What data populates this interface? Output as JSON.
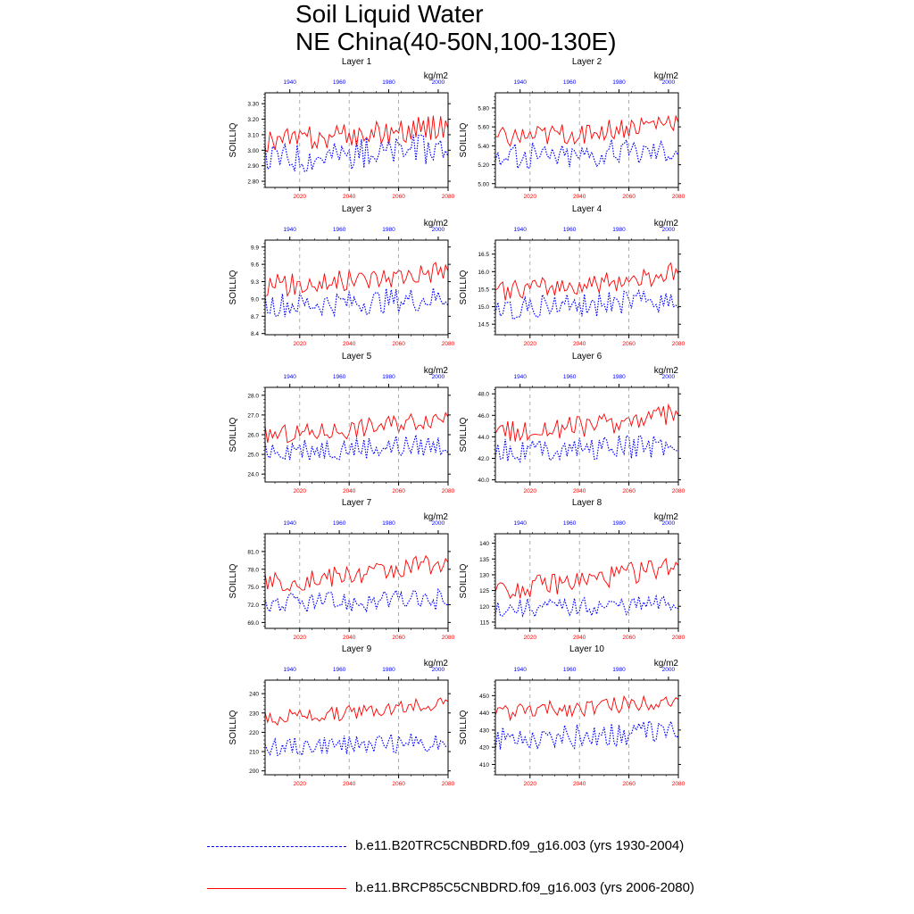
{
  "title": [
    "Soil Liquid Water",
    "NE China(40-50N,100-130E)"
  ],
  "legend": [
    {
      "label": "b.e11.B20TRC5CNBDRD.f09_g16.003 (yrs 1930-2004)",
      "color": "#0000ff",
      "style": "dashed"
    },
    {
      "label": "b.e11.BRCP85C5CNBDRD.f09_g16.003 (yrs 2006-2080)",
      "color": "#ff0000",
      "style": "solid"
    }
  ],
  "chart_data": [
    {
      "type": "line",
      "title": "Layer 1",
      "ylabel": "SOILLIQ",
      "units": "kg/m2",
      "ylim": [
        2.76,
        3.37
      ],
      "yticks": [
        "2.80",
        "2.90",
        "3.00",
        "3.10",
        "3.20",
        "3.30"
      ],
      "xlim_red": [
        2006,
        2080
      ],
      "xticks_red": [
        "2020",
        "2040",
        "2060",
        "2080"
      ],
      "xlim_blue": [
        1930,
        2004
      ],
      "xticks_blue": [
        "1940",
        "1960",
        "1980",
        "2000"
      ],
      "series": [
        {
          "period": "1930-2004",
          "color": "#0000ff",
          "start": 2.9,
          "end": 3.05,
          "mean": 3.0,
          "amp": 0.1
        },
        {
          "period": "2006-2080",
          "color": "#ff0000",
          "start": 3.0,
          "end": 3.2,
          "mean": 3.12,
          "amp": 0.08
        }
      ]
    },
    {
      "type": "line",
      "title": "Layer 2",
      "ylabel": "SOILLIQ",
      "units": "kg/m2",
      "ylim": [
        4.96,
        5.96
      ],
      "yticks": [
        "5.00",
        "5.20",
        "5.40",
        "5.60",
        "5.80"
      ],
      "xlim_red": [
        2006,
        2080
      ],
      "xticks_red": [
        "2020",
        "2040",
        "2060",
        "2080"
      ],
      "xlim_blue": [
        1930,
        2004
      ],
      "xticks_blue": [
        "1940",
        "1960",
        "1980",
        "2000"
      ],
      "series": [
        {
          "period": "1930-2004",
          "color": "#0000ff",
          "start": 5.25,
          "end": 5.45,
          "mean": 5.32,
          "amp": 0.14
        },
        {
          "period": "2006-2080",
          "color": "#ff0000",
          "start": 5.4,
          "end": 5.8,
          "mean": 5.55,
          "amp": 0.12
        }
      ]
    },
    {
      "type": "line",
      "title": "Layer 3",
      "ylabel": "SOILLIQ",
      "units": "kg/m2",
      "ylim": [
        8.38,
        10.02
      ],
      "yticks": [
        "8.4",
        "8.7",
        "9.0",
        "9.3",
        "9.6",
        "9.9"
      ],
      "xlim_red": [
        2006,
        2080
      ],
      "xticks_red": [
        "2020",
        "2040",
        "2060",
        "2080"
      ],
      "xlim_blue": [
        1930,
        2004
      ],
      "xticks_blue": [
        "1940",
        "1960",
        "1980",
        "2000"
      ],
      "series": [
        {
          "period": "1930-2004",
          "color": "#0000ff",
          "start": 8.85,
          "end": 9.1,
          "mean": 8.95,
          "amp": 0.22
        },
        {
          "period": "2006-2080",
          "color": "#ff0000",
          "start": 9.1,
          "end": 9.7,
          "mean": 9.35,
          "amp": 0.2
        }
      ]
    },
    {
      "type": "line",
      "title": "Layer 4",
      "ylabel": "SOILLIQ",
      "units": "kg/m2",
      "ylim": [
        14.2,
        16.9
      ],
      "yticks": [
        "14.5",
        "15.0",
        "15.5",
        "16.0",
        "16.5"
      ],
      "xlim_red": [
        2006,
        2080
      ],
      "xticks_red": [
        "2020",
        "2040",
        "2060",
        "2080"
      ],
      "xlim_blue": [
        1930,
        2004
      ],
      "xticks_blue": [
        "1940",
        "1960",
        "1980",
        "2000"
      ],
      "series": [
        {
          "period": "1930-2004",
          "color": "#0000ff",
          "start": 14.9,
          "end": 15.3,
          "mean": 15.05,
          "amp": 0.35
        },
        {
          "period": "2006-2080",
          "color": "#ff0000",
          "start": 15.2,
          "end": 16.3,
          "mean": 15.7,
          "amp": 0.3
        }
      ]
    },
    {
      "type": "line",
      "title": "Layer 5",
      "ylabel": "SOILLIQ",
      "units": "kg/m2",
      "ylim": [
        23.6,
        28.4
      ],
      "yticks": [
        "24.0",
        "25.0",
        "26.0",
        "27.0",
        "28.0"
      ],
      "xlim_red": [
        2006,
        2080
      ],
      "xticks_red": [
        "2020",
        "2040",
        "2060",
        "2080"
      ],
      "xlim_blue": [
        1930,
        2004
      ],
      "xticks_blue": [
        "1940",
        "1960",
        "1980",
        "2000"
      ],
      "series": [
        {
          "period": "1930-2004",
          "color": "#0000ff",
          "start": 25.2,
          "end": 25.6,
          "mean": 25.3,
          "amp": 0.6
        },
        {
          "period": "2006-2080",
          "color": "#ff0000",
          "start": 25.5,
          "end": 27.6,
          "mean": 26.4,
          "amp": 0.5
        }
      ]
    },
    {
      "type": "line",
      "title": "Layer 6",
      "ylabel": "SOILLIQ",
      "units": "kg/m2",
      "ylim": [
        39.8,
        48.6
      ],
      "yticks": [
        "40.0",
        "42.0",
        "44.0",
        "46.0",
        "48.0"
      ],
      "xlim_red": [
        2006,
        2080
      ],
      "xticks_red": [
        "2020",
        "2040",
        "2060",
        "2080"
      ],
      "xlim_blue": [
        1930,
        2004
      ],
      "xticks_blue": [
        "1940",
        "1960",
        "1980",
        "2000"
      ],
      "series": [
        {
          "period": "1930-2004",
          "color": "#0000ff",
          "start": 42.6,
          "end": 43.6,
          "mean": 42.9,
          "amp": 1.1
        },
        {
          "period": "2006-2080",
          "color": "#ff0000",
          "start": 43.6,
          "end": 47.2,
          "mean": 45.2,
          "amp": 1.0
        }
      ]
    },
    {
      "type": "line",
      "title": "Layer 7",
      "ylabel": "SOILLIQ",
      "units": "kg/m2",
      "ylim": [
        68.0,
        84.0
      ],
      "yticks": [
        "69.0",
        "72.0",
        "75.0",
        "78.0",
        "81.0"
      ],
      "xlim_red": [
        2006,
        2080
      ],
      "xticks_red": [
        "2020",
        "2040",
        "2060",
        "2080"
      ],
      "xlim_blue": [
        1930,
        2004
      ],
      "xticks_blue": [
        "1940",
        "1960",
        "1980",
        "2000"
      ],
      "series": [
        {
          "period": "1930-2004",
          "color": "#0000ff",
          "start": 72.0,
          "end": 73.5,
          "mean": 72.4,
          "amp": 1.8
        },
        {
          "period": "2006-2080",
          "color": "#ff0000",
          "start": 74.0,
          "end": 81.5,
          "mean": 77.5,
          "amp": 1.8
        }
      ]
    },
    {
      "type": "line",
      "title": "Layer 8",
      "ylabel": "SOILLIQ",
      "units": "kg/m2",
      "ylim": [
        113,
        143
      ],
      "yticks": [
        "115",
        "120",
        "125",
        "130",
        "135",
        "140"
      ],
      "xlim_red": [
        2006,
        2080
      ],
      "xticks_red": [
        "2020",
        "2040",
        "2060",
        "2080"
      ],
      "xlim_blue": [
        1930,
        2004
      ],
      "xticks_blue": [
        "1940",
        "1960",
        "1980",
        "2000"
      ],
      "series": [
        {
          "period": "1930-2004",
          "color": "#0000ff",
          "start": 119,
          "end": 122,
          "mean": 120,
          "amp": 3
        },
        {
          "period": "2006-2080",
          "color": "#ff0000",
          "start": 122,
          "end": 138,
          "mean": 129,
          "amp": 3.5
        }
      ]
    },
    {
      "type": "line",
      "title": "Layer 9",
      "ylabel": "SOILLIQ",
      "units": "kg/m2",
      "ylim": [
        198,
        247
      ],
      "yticks": [
        "200",
        "210",
        "220",
        "230",
        "240"
      ],
      "xlim_red": [
        2006,
        2080
      ],
      "xticks_red": [
        "2020",
        "2040",
        "2060",
        "2080"
      ],
      "xlim_blue": [
        1930,
        2004
      ],
      "xticks_blue": [
        "1940",
        "1960",
        "1980",
        "2000"
      ],
      "series": [
        {
          "period": "1930-2004",
          "color": "#0000ff",
          "start": 212,
          "end": 218,
          "mean": 213,
          "amp": 5
        },
        {
          "period": "2006-2080",
          "color": "#ff0000",
          "start": 223,
          "end": 241,
          "mean": 232,
          "amp": 4
        }
      ]
    },
    {
      "type": "line",
      "title": "Layer 10",
      "ylabel": "SOILLIQ",
      "units": "kg/m2",
      "ylim": [
        404,
        459
      ],
      "yticks": [
        "410",
        "420",
        "430",
        "440",
        "450"
      ],
      "xlim_red": [
        2006,
        2080
      ],
      "xticks_red": [
        "2020",
        "2040",
        "2060",
        "2080"
      ],
      "xlim_blue": [
        1930,
        2004
      ],
      "xticks_blue": [
        "1940",
        "1960",
        "1980",
        "2000"
      ],
      "series": [
        {
          "period": "1930-2004",
          "color": "#0000ff",
          "start": 425,
          "end": 436,
          "mean": 424,
          "amp": 7
        },
        {
          "period": "2006-2080",
          "color": "#ff0000",
          "start": 438,
          "end": 454,
          "mean": 443,
          "amp": 5
        }
      ]
    }
  ]
}
